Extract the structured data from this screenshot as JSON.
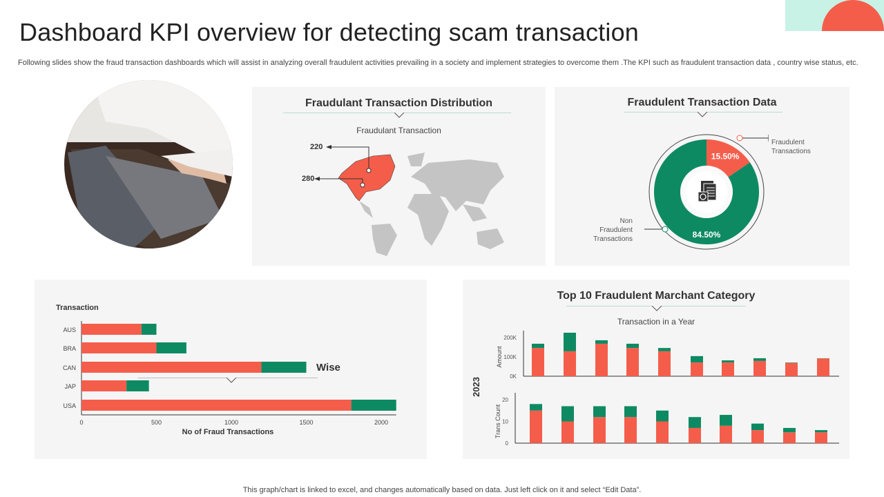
{
  "header": {
    "title": "Dashboard KPI overview  for detecting scam transaction",
    "description": "Following slides show the fraud transaction dashboards which will assist in analyzing overall fraudulent activities prevailing in a society and implement strategies to overcome them .The KPI such as fraudulent transaction data , country wise status, etc."
  },
  "colors": {
    "fraud": "#F55D4B",
    "non_fraud": "#0E8A63",
    "panel": "#F5F5F5",
    "accent_mint": "#B8F0E0"
  },
  "distribution": {
    "title": "Fraudulant Transaction Distribution",
    "subtitle": "Fraudulant Transaction",
    "callouts": [
      {
        "label": "220",
        "country": "CAN"
      },
      {
        "label": "280",
        "country": "USA"
      }
    ]
  },
  "donut": {
    "title": "Fraudulent Transaction Data",
    "icon": "documents-refresh-icon",
    "chart_data": {
      "type": "pie",
      "values": [
        15.5,
        84.5
      ],
      "labels": [
        "15.50%",
        "84.50%"
      ],
      "legend": [
        "Fraudulent Transactions",
        "Non Fraudulent Transactions"
      ]
    },
    "fraud_label": [
      "Fraudulent",
      "Transactions"
    ],
    "non_fraud_label": [
      "Non",
      "Fraudulent",
      "Transactions"
    ]
  },
  "country": {
    "partial_title": "Wise",
    "ylabel": "Transaction",
    "xlabel": "No of Fraud Transactions",
    "chart_data": {
      "type": "bar",
      "orientation": "horizontal",
      "stacked": true,
      "categories": [
        "AUS",
        "BRA",
        "CAN",
        "JAP",
        "USA"
      ],
      "series": [
        {
          "values": [
            400,
            500,
            1200,
            300,
            1800
          ]
        },
        {
          "values": [
            100,
            200,
            300,
            150,
            300
          ]
        }
      ],
      "xlim": [
        0,
        2100
      ],
      "xticks": [
        "0",
        "500",
        "1000",
        "1500",
        "2000"
      ]
    }
  },
  "merchant": {
    "title": "Top 10 Fraudulent Marchant Category",
    "subtitle": "Transaction in a Year",
    "year": "2023",
    "chart_data": [
      {
        "type": "bar",
        "stacked": true,
        "ylabel": "Amount",
        "yticks": [
          "0K",
          "100K",
          "200K"
        ],
        "ylim": [
          0,
          225
        ],
        "series": [
          {
            "values": [
              146,
              129,
              168,
              146,
              129,
              71,
              71,
              79,
              69,
              92
            ]
          },
          {
            "values": [
              22,
              96,
              18,
              22,
              17,
              33,
              11,
              14,
              2,
              1
            ]
          }
        ]
      },
      {
        "type": "bar",
        "stacked": true,
        "ylabel": "Trans Count",
        "yticks": [
          "0",
          "10",
          "20"
        ],
        "ylim": [
          0,
          20
        ],
        "series": [
          {
            "values": [
              15,
              10,
              12,
              12,
              10,
              7,
              8,
              6,
              5,
              5
            ]
          },
          {
            "values": [
              3,
              7,
              5,
              5,
              5,
              5,
              5,
              3,
              2,
              1
            ]
          }
        ]
      }
    ]
  },
  "footer": "This graph/chart is linked to excel,  and changes automatically based on data. Just left click on it and select “Edit Data”."
}
